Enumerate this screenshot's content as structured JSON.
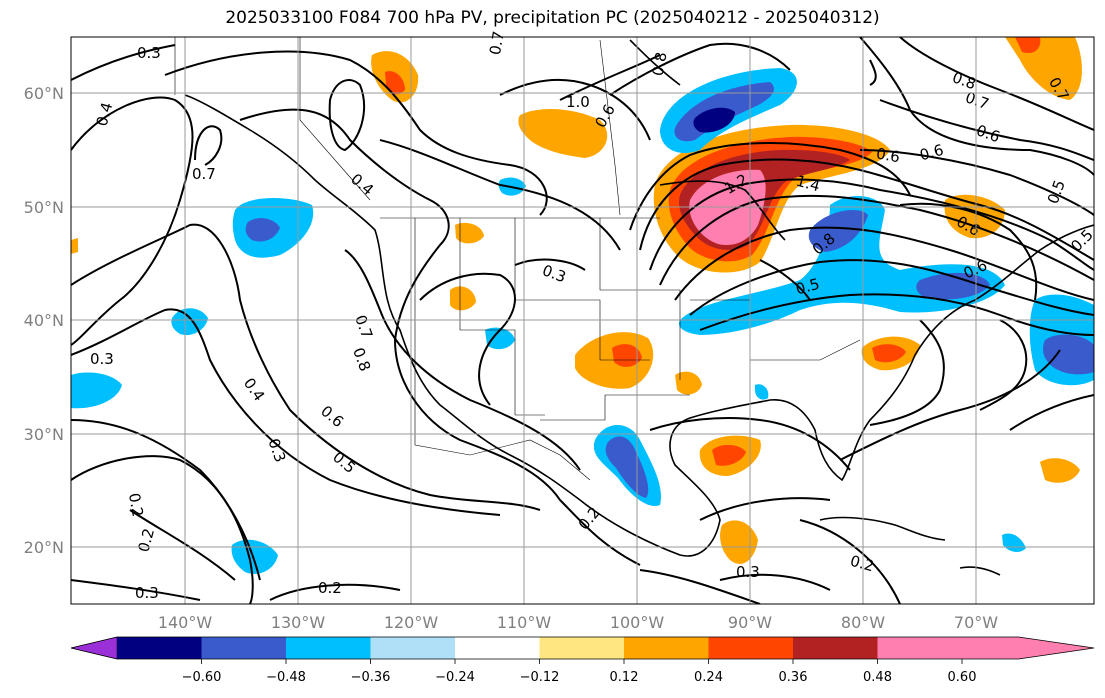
{
  "title": "2025033100 F084 700 hPa PV, precipitation PC (2025040212 - 2025040312)",
  "lon_labels": [
    "140°W",
    "130°W",
    "120°W",
    "110°W",
    "100°W",
    "90°W",
    "80°W",
    "70°W"
  ],
  "lat_labels": [
    "60°N",
    "50°N",
    "40°N",
    "30°N",
    "20°N"
  ],
  "colorbar": {
    "ticks": [
      "−0.60",
      "−0.48",
      "−0.36",
      "−0.24",
      "−0.12",
      "0.12",
      "0.24",
      "0.36",
      "0.48",
      "0.60"
    ],
    "colors": [
      "#9b30d9",
      "#000080",
      "#3a5bcc",
      "#00bfff",
      "#b0e0f8",
      "#ffffff",
      "#ffe680",
      "#ffa500",
      "#ff4500",
      "#b22222",
      "#ff80b0"
    ]
  },
  "contour_labels": [
    "0.3",
    "0.4",
    "0.7",
    "0.3",
    "0.4",
    "0.7",
    "0.8",
    "0.4",
    "0.3",
    "0.6",
    "0.5",
    "0.3",
    "0.2",
    "0.2",
    "0.3",
    "0.2",
    "0.2",
    "0.8",
    "1.0",
    "1.2",
    "1.4",
    "0.6",
    "0.7",
    "0.8",
    "0.5",
    "0.6",
    "0.6",
    "0.5",
    "0.3",
    "0.2",
    "0.7",
    "0.8",
    "0.7",
    "0.6",
    "0.5",
    "0.6",
    "0.6"
  ]
}
